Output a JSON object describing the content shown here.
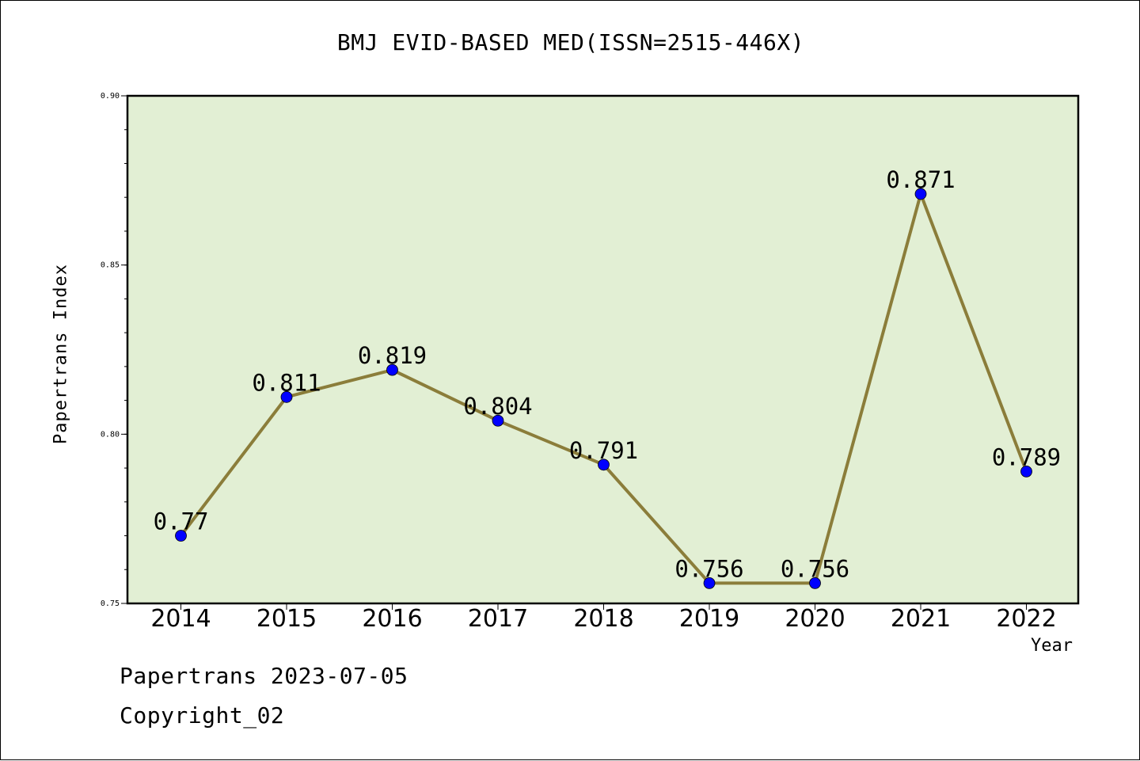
{
  "chart_data": {
    "type": "line",
    "title": "BMJ EVID-BASED MED(ISSN=2515-446X)",
    "xlabel": "Year",
    "ylabel": "Papertrans Index",
    "categories": [
      "2014",
      "2015",
      "2016",
      "2017",
      "2018",
      "2019",
      "2020",
      "2021",
      "2022"
    ],
    "values": [
      0.77,
      0.811,
      0.819,
      0.804,
      0.791,
      0.756,
      0.756,
      0.871,
      0.789
    ],
    "data_labels": [
      "0.77",
      "0.811",
      "0.819",
      "0.804",
      "0.791",
      "0.756",
      "0.756",
      "0.871",
      "0.789"
    ],
    "ylim": [
      0.75,
      0.9
    ],
    "yticks": [
      "0.75",
      "0.80",
      "0.85",
      "0.90"
    ],
    "grid": false,
    "colors": {
      "plot_background": "#e2efd4",
      "line": "#8b7d3a",
      "marker": "#0000ff"
    }
  },
  "footer": {
    "date_line": "Papertrans 2023-07-05",
    "copyright": "Copyright_02"
  }
}
